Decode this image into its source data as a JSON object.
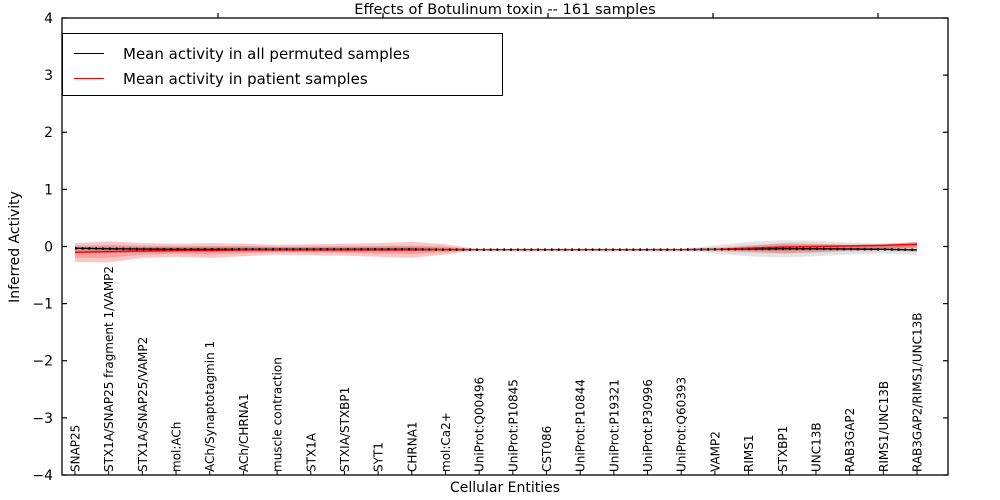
{
  "chart_data": {
    "type": "line",
    "title": "Effects of Botulinum toxin -- 161 samples",
    "xlabel": "Cellular Entities",
    "ylabel": "Inferred Activity",
    "ylim": [
      -4,
      4
    ],
    "yticks": [
      -4,
      -3,
      -2,
      -1,
      0,
      1,
      2,
      3,
      4
    ],
    "grid": false,
    "legend_position": "upper-left",
    "categories": [
      "SNAP25",
      "STX1A/SNAP25 fragment 1/VAMP2",
      "STX1A/SNAP25/VAMP2",
      "mol:ACh",
      "ACh/Synaptotagmin 1",
      "ACh/CHRNA1",
      "muscle contraction",
      "STX1A",
      "STXIA/STXBP1",
      "SYT1",
      "CHRNA1",
      "mol:Ca2+",
      "UniProt:Q00496",
      "UniProt:P10845",
      "CST086",
      "UniProt:P10844",
      "UniProt:P19321",
      "UniProt:P30996",
      "UniProt:Q60393",
      "VAMP2",
      "RIMS1",
      "STXBP1",
      "UNC13B",
      "RAB3GAP2",
      "RIMS1/UNC13B",
      "RAB3GAP2/RIMS1/UNC13B"
    ],
    "series": [
      {
        "name": "Mean activity in all permuted samples",
        "color": "#000000",
        "marker": "dotted",
        "values": [
          -0.03,
          -0.04,
          -0.045,
          -0.05,
          -0.05,
          -0.05,
          -0.05,
          -0.05,
          -0.05,
          -0.05,
          -0.05,
          -0.055,
          -0.055,
          -0.055,
          -0.055,
          -0.055,
          -0.055,
          -0.055,
          -0.055,
          -0.05,
          -0.045,
          -0.04,
          -0.04,
          -0.045,
          -0.05,
          -0.06
        ]
      },
      {
        "name": "Mean activity in patient samples",
        "color": "#ff0000",
        "marker": "none",
        "values": [
          -0.1,
          -0.09,
          -0.08,
          -0.07,
          -0.07,
          -0.06,
          -0.06,
          -0.06,
          -0.06,
          -0.06,
          -0.06,
          -0.055,
          -0.055,
          -0.055,
          -0.055,
          -0.055,
          -0.055,
          -0.055,
          -0.055,
          -0.05,
          -0.03,
          -0.01,
          0.0,
          0.01,
          0.02,
          0.04
        ]
      }
    ],
    "bands": [
      {
        "name": "permuted samples spread",
        "color": "#999999",
        "opacity": 0.28,
        "upper": [
          0.02,
          0.03,
          0.02,
          0.01,
          0.01,
          0.01,
          0.0,
          0.0,
          0.0,
          0.0,
          0.0,
          -0.02,
          -0.045,
          -0.045,
          -0.045,
          -0.045,
          -0.045,
          -0.045,
          -0.045,
          0.02,
          0.08,
          0.11,
          0.1,
          0.07,
          0.05,
          0.08
        ],
        "lower": [
          -0.09,
          -0.11,
          -0.1,
          -0.1,
          -0.1,
          -0.09,
          -0.09,
          -0.09,
          -0.09,
          -0.09,
          -0.08,
          -0.07,
          -0.06,
          -0.06,
          -0.06,
          -0.06,
          -0.06,
          -0.06,
          -0.06,
          -0.12,
          -0.17,
          -0.19,
          -0.17,
          -0.14,
          -0.12,
          -0.15
        ]
      },
      {
        "name": "patient samples spread",
        "color": "#ee2222",
        "opacity": 0.26,
        "upper": [
          0.06,
          0.09,
          0.06,
          0.05,
          0.06,
          0.05,
          0.03,
          0.04,
          0.05,
          0.06,
          0.08,
          0.04,
          -0.055,
          -0.055,
          -0.055,
          -0.055,
          -0.055,
          -0.055,
          -0.055,
          -0.04,
          0.01,
          0.06,
          0.05,
          0.03,
          0.04,
          0.08
        ],
        "lower": [
          -0.27,
          -0.28,
          -0.2,
          -0.18,
          -0.2,
          -0.17,
          -0.14,
          -0.15,
          -0.16,
          -0.18,
          -0.2,
          -0.14,
          -0.055,
          -0.055,
          -0.055,
          -0.055,
          -0.055,
          -0.055,
          -0.055,
          -0.07,
          -0.09,
          -0.12,
          -0.1,
          -0.07,
          -0.06,
          -0.02
        ]
      }
    ]
  }
}
